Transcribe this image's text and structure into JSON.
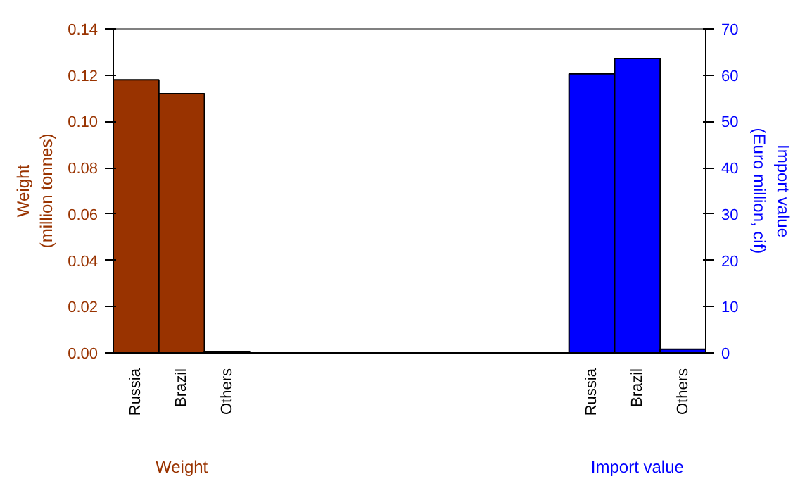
{
  "chart_data": {
    "type": "bar",
    "categories": [
      "Russia",
      "Brazil",
      "Others",
      null,
      null,
      null,
      null,
      null,
      null,
      null,
      "Russia",
      "Brazil",
      "Others"
    ],
    "ylabel": "Weight\n(million tonnes)",
    "y2label": "Import value\n(Euro million, cif)",
    "ylim": [
      0,
      0.14
    ],
    "yticks": [
      {
        "value": 0,
        "label": "0.00"
      },
      0.02,
      0.04,
      0.06,
      0.08,
      {
        "value": 0.1,
        "label": "0.10"
      },
      0.12,
      0.14
    ],
    "y2lim": [
      0,
      70
    ],
    "y2ticks": [
      0,
      10,
      20,
      30,
      40,
      50,
      60,
      70
    ],
    "grid": false,
    "series": [
      {
        "name": "Weight",
        "color": "#993300",
        "values": [
          0.118,
          0.112,
          0.0005,
          null,
          null,
          null,
          null,
          null,
          null,
          null,
          null,
          null,
          null
        ]
      },
      {
        "name": "Import value",
        "color": "#0000ff",
        "axis": "y2",
        "values": [
          null,
          null,
          null,
          null,
          null,
          null,
          null,
          null,
          null,
          null,
          60.3,
          63.6,
          0.8
        ]
      }
    ]
  }
}
